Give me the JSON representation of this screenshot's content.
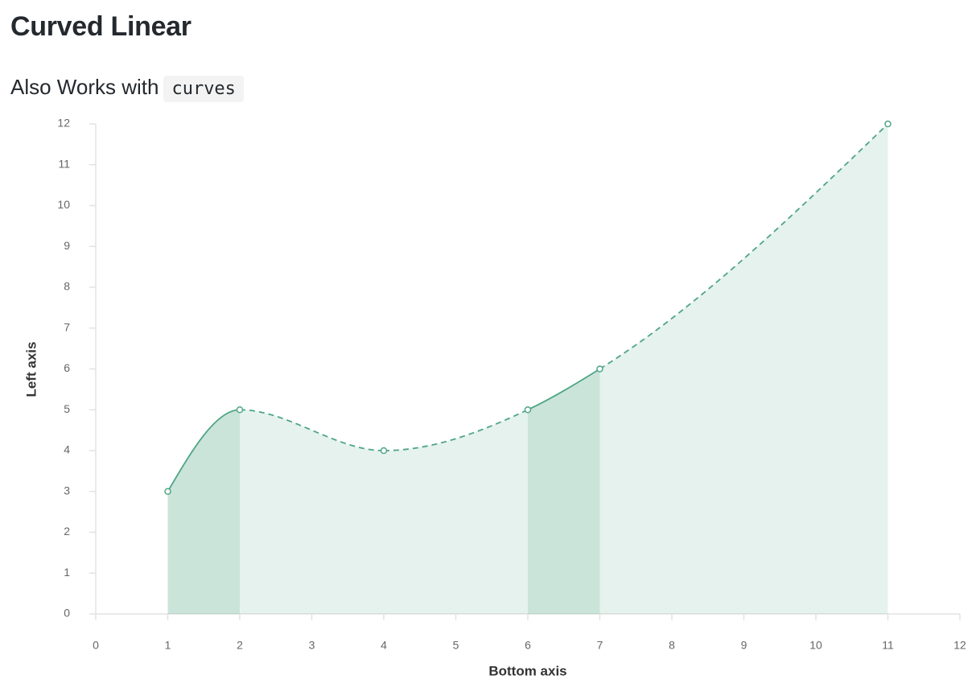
{
  "chart_data": {
    "type": "line",
    "title": "Curved Linear",
    "subtitle": "Also Works with",
    "subtitle_code": "curves",
    "x_label": "Bottom axis",
    "y_label": "Left axis",
    "x": [
      1,
      2,
      4,
      6,
      7,
      11
    ],
    "series": [
      {
        "values": [
          3,
          5,
          4,
          5,
          6,
          12
        ],
        "color": "#4fa586",
        "segment_styles": [
          "solid",
          "dashed",
          "dashed",
          "solid",
          "dashed",
          null
        ]
      }
    ],
    "curve": "monotone-x",
    "area": true,
    "xlim": [
      0,
      12
    ],
    "ylim": [
      0,
      12
    ],
    "xticks": [
      0,
      1,
      2,
      3,
      4,
      5,
      6,
      7,
      8,
      9,
      10,
      11,
      12
    ],
    "yticks": [
      0,
      1,
      2,
      3,
      4,
      5,
      6,
      7,
      8,
      9,
      10,
      11,
      12
    ]
  }
}
